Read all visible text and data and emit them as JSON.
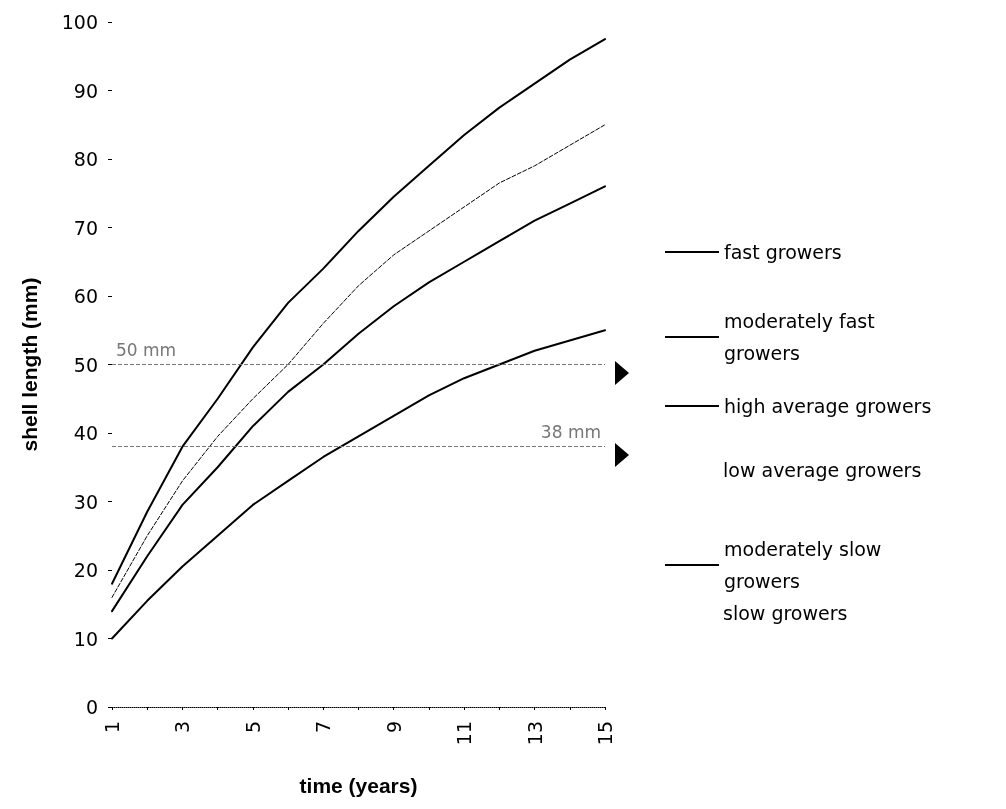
{
  "chart_data": {
    "type": "line",
    "xlabel": "time (years)",
    "ylabel": "shell length (mm)",
    "x": [
      1,
      2,
      3,
      4,
      5,
      6,
      7,
      8,
      9,
      10,
      11,
      12,
      13,
      14,
      15
    ],
    "series": [
      {
        "name": "fast growers",
        "color": "#000000",
        "values": [
          18,
          28.5,
          38,
          45,
          52.5,
          59,
          64,
          69.5,
          74.5,
          79,
          83.5,
          87.5,
          91,
          94.5,
          97.5
        ]
      },
      {
        "name": "moderately fast growers",
        "color": "#000000",
        "line_style": "dashed",
        "values": [
          16,
          25,
          33,
          39.5,
          45,
          50,
          56,
          61.5,
          66,
          69.5,
          73,
          76.5,
          79,
          82,
          85
        ]
      },
      {
        "name": "high average growers",
        "color": "#000000",
        "values": [
          14,
          22,
          29.5,
          35,
          41,
          46,
          50,
          54.5,
          58.5,
          62,
          65,
          68,
          71,
          73.5,
          76
        ]
      },
      {
        "name": "moderately slow growers",
        "color": "#000000",
        "values": [
          10,
          15.5,
          20.5,
          25,
          29.5,
          33,
          36.5,
          39.5,
          42.5,
          45.5,
          48,
          50,
          52,
          53.5,
          55
        ]
      }
    ],
    "xlim": [
      1,
      15
    ],
    "xticks": [
      1,
      {
        "value": 2,
        "label": null
      },
      3,
      {
        "value": 4,
        "label": null
      },
      5,
      {
        "value": 6,
        "label": null
      },
      7,
      {
        "value": 8,
        "label": null
      },
      9,
      {
        "value": 10,
        "label": null
      },
      11,
      {
        "value": 12,
        "label": null
      },
      13,
      {
        "value": 14,
        "label": null
      },
      15
    ],
    "ylim": [
      0,
      100
    ],
    "yticks": [
      0,
      10,
      20,
      30,
      40,
      50,
      60,
      70,
      80,
      90,
      100
    ],
    "ref_lines": [
      {
        "axis": "y",
        "value": 50,
        "label": "50 mm",
        "color": "#777777",
        "line_style": "dashed"
      },
      {
        "axis": "y",
        "value": 38,
        "label": "38 mm",
        "color": "#777777",
        "line_style": "dashed"
      }
    ],
    "annotations": [
      "low average growers",
      "slow growers"
    ],
    "legend": "right",
    "grid": false,
    "marker": "none",
    "line_style": "solid"
  }
}
